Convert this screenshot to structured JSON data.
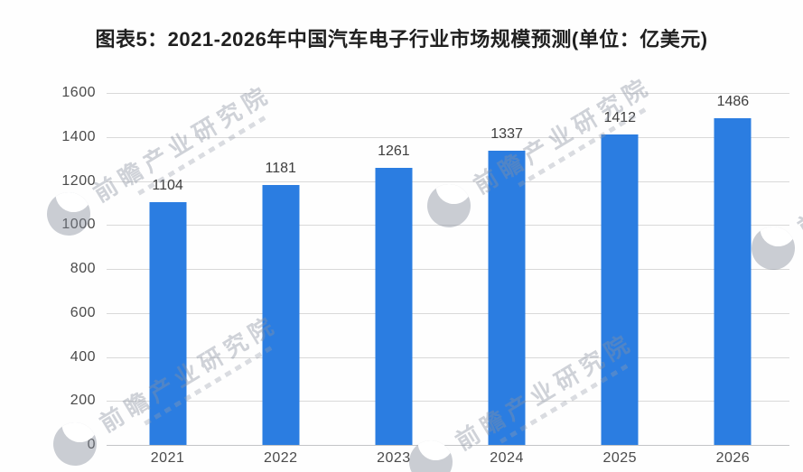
{
  "title": "图表5：2021-2026年中国汽车电子行业市场规模预测(单位：亿美元)",
  "watermark": {
    "text": "前瞻产业研究院"
  },
  "chart_data": {
    "type": "bar",
    "title": "图表5：2021-2026年中国汽车电子行业市场规模预测(单位：亿美元)",
    "categories": [
      "2021",
      "2022",
      "2023",
      "2024",
      "2025",
      "2026"
    ],
    "values": [
      1104,
      1181,
      1261,
      1337,
      1412,
      1486
    ],
    "xlabel": "",
    "ylabel": "",
    "unit": "亿美元",
    "ylim": [
      0,
      1600
    ],
    "yticks": [
      0,
      200,
      400,
      600,
      800,
      1000,
      1200,
      1400,
      1600
    ],
    "grid": true,
    "legend": false,
    "bar_color": "#2b7de1",
    "value_label_color": "#3d3d3d",
    "axis_text_color": "#4a4a4a",
    "gridline_color": "#d9d9d9"
  }
}
